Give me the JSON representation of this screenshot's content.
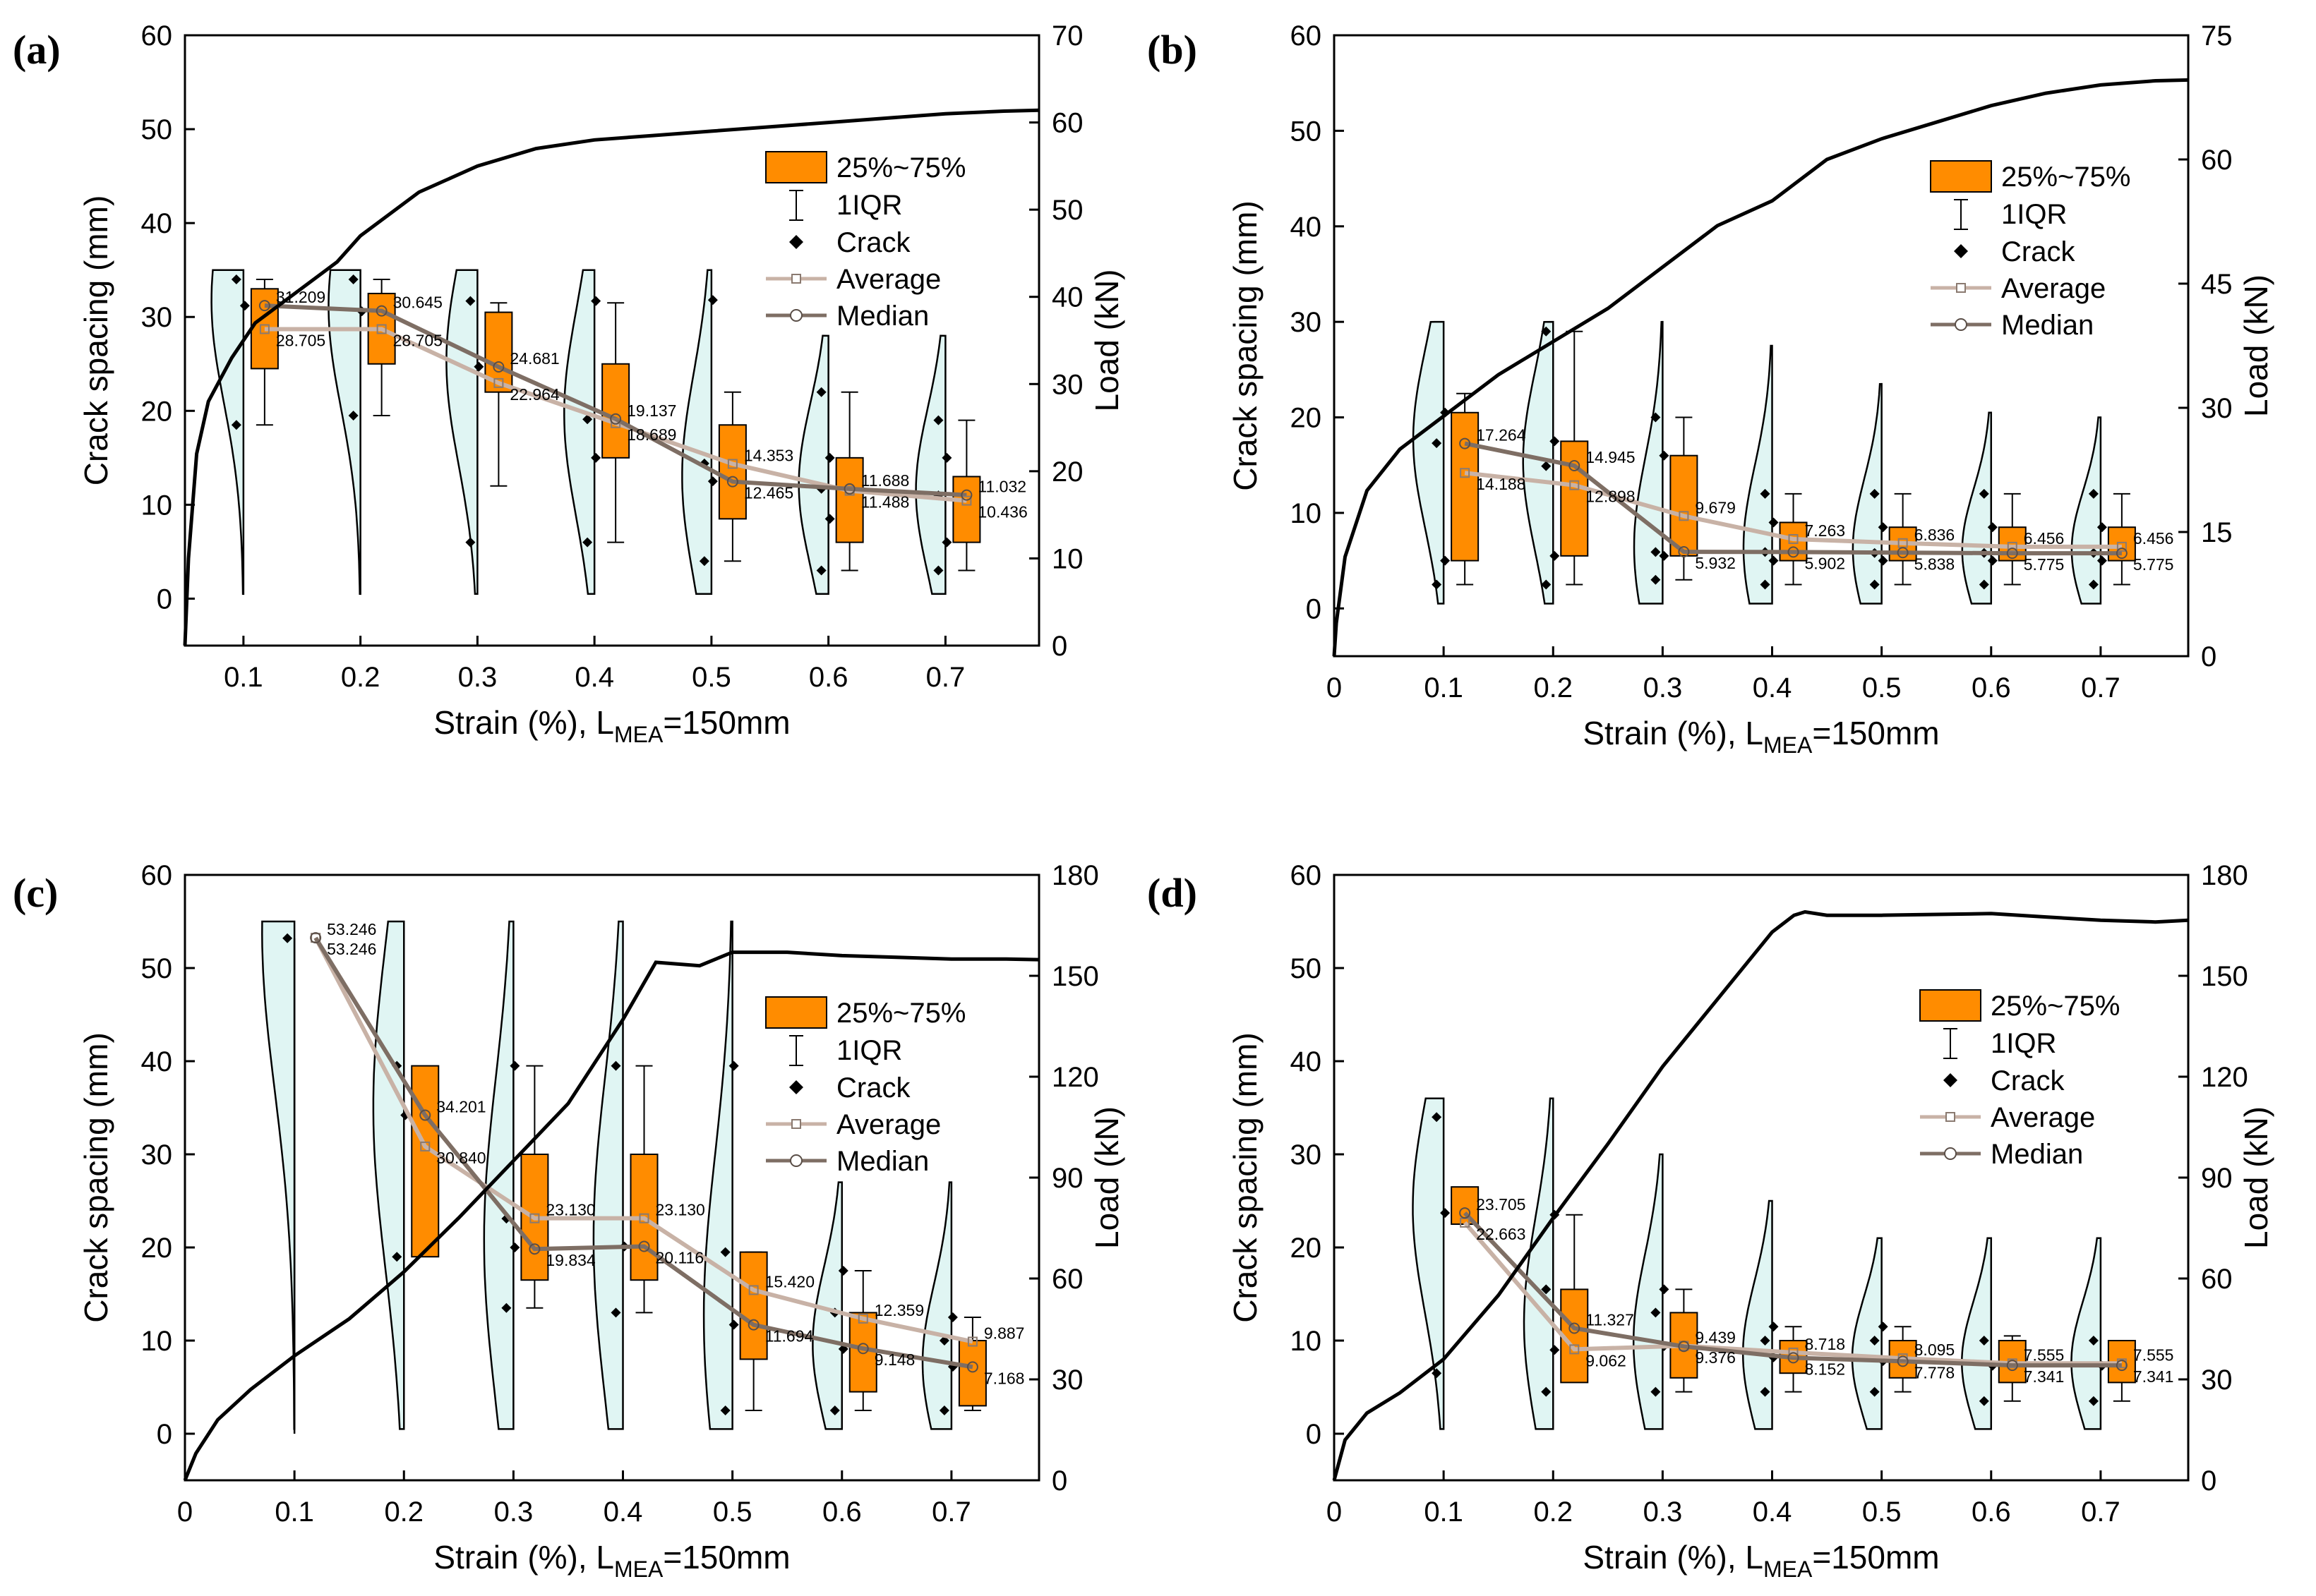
{
  "figure": {
    "common": {
      "xlabel_pre": "Strain (%), L",
      "xlabel_sub": "MEA",
      "xlabel_post": "=150mm",
      "ylabel_left": "Crack spacing (mm)",
      "ylabel_right": "Load (kN)",
      "xticks": [
        "0.1",
        "0.2",
        "0.3",
        "0.4",
        "0.5",
        "0.6",
        "0.7"
      ],
      "zero_label": "0",
      "legend": {
        "box": "25%~75%",
        "whisker": "1IQR",
        "crack": "Crack",
        "average": "Average",
        "median": "Median"
      }
    },
    "colors": {
      "box_fill": "#ff8c00",
      "violin_fill": "#e0f5f3",
      "avg_line": "#c8b2a6",
      "median_line": "#7e6e64",
      "load_line": "#000000"
    }
  },
  "chart_data": [
    {
      "panel": "(a)",
      "type": "box",
      "show_zero": false,
      "xlim": [
        0.05,
        0.78
      ],
      "ylim_left": [
        -5,
        60
      ],
      "yticks_left": [
        0,
        10,
        20,
        30,
        40,
        50,
        60
      ],
      "ylim_right": [
        0,
        70
      ],
      "yticks_right": [
        0,
        10,
        20,
        30,
        40,
        50,
        60,
        70
      ],
      "strain": [
        0.1,
        0.2,
        0.3,
        0.4,
        0.5,
        0.6,
        0.7
      ],
      "q1": [
        24.5,
        25.0,
        22.0,
        15.0,
        8.5,
        6.0,
        6.0
      ],
      "q3": [
        33.0,
        32.5,
        30.5,
        25.0,
        18.5,
        15.0,
        13.0
      ],
      "whisker_low": [
        18.5,
        19.5,
        12.0,
        6.0,
        4.0,
        3.0,
        3.0
      ],
      "whisker_high": [
        34.0,
        34.0,
        31.5,
        31.5,
        22.0,
        22.0,
        19.0
      ],
      "violin_max": [
        35,
        35,
        35,
        35,
        35,
        28,
        28
      ],
      "average": [
        28.705,
        28.705,
        22.964,
        18.689,
        14.353,
        11.488,
        10.436
      ],
      "median": [
        31.209,
        30.645,
        24.681,
        19.137,
        12.465,
        11.688,
        11.032
      ],
      "avg_labels": [
        "28.705",
        "28.705",
        "22.964",
        "18.689",
        "14.353",
        "11.488",
        "10.436"
      ],
      "med_labels": [
        "31.209",
        "30.645",
        "24.681",
        "19.137",
        "12.465",
        "11.688",
        "11.032"
      ],
      "cracks": [
        [
          18.5,
          31.2,
          34.0
        ],
        [
          19.5,
          30.6,
          34.0
        ],
        [
          6.0,
          24.7,
          31.7
        ],
        [
          6.0,
          15.0,
          19.1,
          31.7
        ],
        [
          4.0,
          12.5,
          14.4,
          31.8
        ],
        [
          3.0,
          8.5,
          11.7,
          15.0,
          22.0
        ],
        [
          3.0,
          6.0,
          11.0,
          15.0,
          19.0
        ]
      ],
      "load": {
        "strain": [
          0.05,
          0.053,
          0.06,
          0.07,
          0.09,
          0.11,
          0.13,
          0.15,
          0.18,
          0.2,
          0.22,
          0.25,
          0.3,
          0.35,
          0.4,
          0.45,
          0.5,
          0.55,
          0.6,
          0.65,
          0.7,
          0.75,
          0.78
        ],
        "kN": [
          0,
          10,
          22,
          28,
          33,
          37,
          39,
          41,
          44,
          47,
          49,
          52,
          55,
          57,
          58,
          58.5,
          59,
          59.5,
          60,
          60.5,
          61,
          61.3,
          61.4
        ]
      }
    },
    {
      "panel": "(b)",
      "type": "box",
      "show_zero": true,
      "xlim": [
        0.0,
        0.78
      ],
      "ylim_left": [
        -5,
        60
      ],
      "yticks_left": [
        0,
        10,
        20,
        30,
        40,
        50,
        60
      ],
      "ylim_right": [
        0,
        75
      ],
      "yticks_right": [
        0,
        15,
        30,
        45,
        60,
        75
      ],
      "strain": [
        0.1,
        0.2,
        0.3,
        0.4,
        0.5,
        0.6,
        0.7
      ],
      "q1": [
        5.0,
        5.5,
        5.5,
        5.0,
        5.0,
        5.0,
        5.0
      ],
      "q3": [
        20.5,
        17.5,
        16.0,
        9.0,
        8.5,
        8.5,
        8.5
      ],
      "whisker_low": [
        2.5,
        2.5,
        3.0,
        2.5,
        2.5,
        2.5,
        2.5
      ],
      "whisker_high": [
        22.5,
        29.0,
        20.0,
        12.0,
        12.0,
        12.0,
        12.0
      ],
      "violin_max": [
        30,
        30,
        30,
        27.5,
        23.5,
        20.5,
        20
      ],
      "average": [
        14.188,
        12.898,
        9.679,
        7.263,
        6.836,
        6.456,
        6.456
      ],
      "median": [
        17.264,
        14.945,
        5.932,
        5.902,
        5.838,
        5.775,
        5.775
      ],
      "avg_labels": [
        "14.188",
        "12.898",
        "9.679",
        "7.263",
        "6.836",
        "6.456",
        "6.456"
      ],
      "med_labels": [
        "17.264",
        "14.945",
        "5.932",
        "5.902",
        "5.838",
        "5.775",
        "5.775"
      ],
      "cracks": [
        [
          2.5,
          5.0,
          17.3,
          20.5
        ],
        [
          2.5,
          5.5,
          14.9,
          17.5,
          29.0
        ],
        [
          3.0,
          5.5,
          5.9,
          16.0,
          20.0
        ],
        [
          2.5,
          5.0,
          5.9,
          9.0,
          12.0
        ],
        [
          2.5,
          5.0,
          5.8,
          8.5,
          12.0
        ],
        [
          2.5,
          5.0,
          5.8,
          8.5,
          12.0
        ],
        [
          2.5,
          5.0,
          5.8,
          8.5,
          12.0
        ]
      ],
      "load": {
        "strain": [
          0.0,
          0.002,
          0.01,
          0.03,
          0.06,
          0.09,
          0.12,
          0.15,
          0.2,
          0.25,
          0.3,
          0.35,
          0.4,
          0.45,
          0.5,
          0.55,
          0.6,
          0.65,
          0.7,
          0.75,
          0.78
        ],
        "kN": [
          0,
          4,
          12,
          20,
          25,
          28,
          31,
          34,
          38,
          42,
          47,
          52,
          55,
          60,
          62.5,
          64.5,
          66.5,
          68,
          69,
          69.5,
          69.6
        ]
      }
    },
    {
      "panel": "(c)",
      "type": "box",
      "show_zero": true,
      "xlim": [
        0.0,
        0.78
      ],
      "ylim_left": [
        -5,
        60
      ],
      "yticks_left": [
        0,
        10,
        20,
        30,
        40,
        50,
        60
      ],
      "ylim_right": [
        0,
        180
      ],
      "yticks_right": [
        0,
        30,
        60,
        90,
        120,
        150,
        180
      ],
      "strain": [
        0.1,
        0.2,
        0.3,
        0.4,
        0.5,
        0.6,
        0.7
      ],
      "q1": [
        null,
        19.0,
        16.5,
        16.5,
        8.0,
        4.5,
        3.0
      ],
      "q3": [
        null,
        39.5,
        30.0,
        30.0,
        19.5,
        13.0,
        10.0
      ],
      "whisker_low": [
        null,
        null,
        13.5,
        13.0,
        2.5,
        2.5,
        2.5
      ],
      "whisker_high": [
        null,
        null,
        39.5,
        39.5,
        19.5,
        17.5,
        12.5
      ],
      "violin_max": [
        55,
        55,
        55,
        55,
        55,
        27,
        27
      ],
      "average": [
        53.246,
        30.84,
        23.13,
        23.13,
        15.42,
        12.359,
        9.887
      ],
      "median": [
        53.246,
        34.201,
        19.834,
        20.116,
        11.694,
        9.148,
        7.168
      ],
      "avg_labels": [
        "53.246",
        "30.840",
        "23.130",
        "23.130",
        "15.420",
        "12.359",
        "9.887"
      ],
      "med_labels": [
        "53.246",
        "34.201",
        "19.834",
        "20.116",
        "11.694",
        "9.148",
        "7.168"
      ],
      "cracks": [
        [
          53.2
        ],
        [
          19.0,
          34.2,
          39.5
        ],
        [
          13.5,
          20.0,
          23.1,
          39.5
        ],
        [
          13.0,
          20.1,
          39.5
        ],
        [
          2.5,
          11.7,
          19.5,
          39.5
        ],
        [
          2.5,
          9.1,
          13.0,
          17.5
        ],
        [
          2.5,
          7.2,
          10.0,
          12.5
        ]
      ],
      "load": {
        "strain": [
          0.0,
          0.01,
          0.03,
          0.06,
          0.1,
          0.15,
          0.2,
          0.25,
          0.3,
          0.35,
          0.4,
          0.43,
          0.47,
          0.5,
          0.55,
          0.6,
          0.65,
          0.7,
          0.75,
          0.78
        ],
        "kN": [
          0,
          8,
          18,
          27,
          37,
          48,
          62,
          78,
          95,
          112,
          137,
          154,
          153,
          157,
          157,
          156,
          155.5,
          155,
          155,
          154.8
        ]
      }
    },
    {
      "panel": "(d)",
      "type": "box",
      "show_zero": true,
      "xlim": [
        0.0,
        0.78
      ],
      "ylim_left": [
        -5,
        60
      ],
      "yticks_left": [
        0,
        10,
        20,
        30,
        40,
        50,
        60
      ],
      "ylim_right": [
        0,
        180
      ],
      "yticks_right": [
        0,
        30,
        60,
        90,
        120,
        150,
        180
      ],
      "strain": [
        0.1,
        0.2,
        0.3,
        0.4,
        0.5,
        0.6,
        0.7
      ],
      "q1": [
        22.5,
        5.5,
        6.0,
        6.5,
        6.0,
        5.5,
        5.5
      ],
      "q3": [
        26.5,
        15.5,
        13.0,
        10.0,
        10.0,
        10.0,
        10.0
      ],
      "whisker_low": [
        null,
        null,
        4.5,
        4.5,
        4.5,
        3.5,
        3.5
      ],
      "whisker_high": [
        null,
        23.5,
        15.5,
        11.5,
        11.5,
        10.5,
        10.0
      ],
      "violin_max": [
        36,
        36,
        30,
        25,
        21,
        21,
        21
      ],
      "average": [
        22.663,
        9.062,
        9.439,
        8.718,
        8.095,
        7.555,
        7.555
      ],
      "median": [
        23.705,
        11.327,
        9.376,
        8.152,
        7.778,
        7.341,
        7.341
      ],
      "avg_labels": [
        "22.663",
        "9.062",
        "9.439",
        "8.718",
        "8.095",
        "7.555",
        "7.555"
      ],
      "med_labels": [
        "23.705",
        "11.327",
        "9.376",
        "8.152",
        "7.778",
        "7.341",
        "7.341"
      ],
      "cracks": [
        [
          6.5,
          23.7,
          34.0
        ],
        [
          4.5,
          9.0,
          15.5,
          23.5
        ],
        [
          4.5,
          9.4,
          13.0,
          15.5
        ],
        [
          4.5,
          8.2,
          10.0,
          11.5
        ],
        [
          4.5,
          7.8,
          10.0,
          11.5
        ],
        [
          3.5,
          7.3,
          10.0
        ],
        [
          3.5,
          7.3,
          10.0
        ]
      ],
      "load": {
        "strain": [
          0.0,
          0.01,
          0.03,
          0.06,
          0.1,
          0.15,
          0.2,
          0.25,
          0.3,
          0.35,
          0.4,
          0.42,
          0.43,
          0.45,
          0.5,
          0.6,
          0.65,
          0.7,
          0.75,
          0.78
        ],
        "kN": [
          0,
          12,
          20,
          26,
          36,
          55,
          78,
          100,
          123,
          143,
          163,
          168,
          169,
          168,
          168,
          168.5,
          167.5,
          166.5,
          166,
          166.5
        ]
      }
    }
  ]
}
